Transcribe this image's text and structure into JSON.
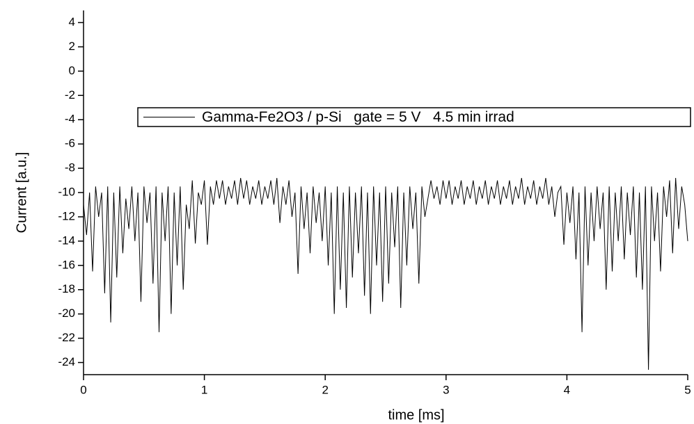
{
  "chart_data": {
    "type": "line",
    "xlabel": "time [ms]",
    "ylabel": "Current [a.u.]",
    "xlim": [
      0,
      5
    ],
    "xticks": [
      0,
      1,
      2,
      3,
      4,
      5
    ],
    "ylim": [
      -25,
      5
    ],
    "yticks": [
      -24,
      -22,
      -20,
      -18,
      -16,
      -14,
      -12,
      -10,
      -8,
      -6,
      -4,
      -2,
      0,
      2,
      4
    ],
    "legend": "upper right",
    "x": [
      0,
      0.025,
      0.05,
      0.075,
      0.1,
      0.125,
      0.15,
      0.175,
      0.2,
      0.225,
      0.25,
      0.275,
      0.3,
      0.325,
      0.35,
      0.375,
      0.4,
      0.425,
      0.45,
      0.475,
      0.5,
      0.525,
      0.55,
      0.575,
      0.6,
      0.625,
      0.65,
      0.675,
      0.7,
      0.725,
      0.75,
      0.775,
      0.8,
      0.825,
      0.85,
      0.875,
      0.9,
      0.925,
      0.95,
      0.975,
      1,
      1.025,
      1.05,
      1.075,
      1.1,
      1.125,
      1.15,
      1.175,
      1.2,
      1.225,
      1.25,
      1.275,
      1.3,
      1.325,
      1.35,
      1.375,
      1.4,
      1.425,
      1.45,
      1.475,
      1.5,
      1.525,
      1.55,
      1.575,
      1.6,
      1.625,
      1.65,
      1.675,
      1.7,
      1.725,
      1.75,
      1.775,
      1.8,
      1.825,
      1.85,
      1.875,
      1.9,
      1.925,
      1.95,
      1.975,
      2,
      2.025,
      2.05,
      2.075,
      2.1,
      2.125,
      2.15,
      2.175,
      2.2,
      2.225,
      2.25,
      2.275,
      2.3,
      2.325,
      2.35,
      2.375,
      2.4,
      2.425,
      2.45,
      2.475,
      2.5,
      2.525,
      2.55,
      2.575,
      2.6,
      2.625,
      2.65,
      2.675,
      2.7,
      2.725,
      2.75,
      2.775,
      2.8,
      2.825,
      2.85,
      2.875,
      2.9,
      2.925,
      2.95,
      2.975,
      3,
      3.025,
      3.05,
      3.075,
      3.1,
      3.125,
      3.15,
      3.175,
      3.2,
      3.225,
      3.25,
      3.275,
      3.3,
      3.325,
      3.35,
      3.375,
      3.4,
      3.425,
      3.45,
      3.475,
      3.5,
      3.525,
      3.55,
      3.575,
      3.6,
      3.625,
      3.65,
      3.675,
      3.7,
      3.725,
      3.75,
      3.775,
      3.8,
      3.825,
      3.85,
      3.875,
      3.9,
      3.925,
      3.95,
      3.975,
      4,
      4.025,
      4.05,
      4.075,
      4.1,
      4.125,
      4.15,
      4.175,
      4.2,
      4.225,
      4.25,
      4.275,
      4.3,
      4.325,
      4.35,
      4.375,
      4.4,
      4.425,
      4.45,
      4.475,
      4.5,
      4.525,
      4.55,
      4.575,
      4.6,
      4.625,
      4.65,
      4.675,
      4.7,
      4.725,
      4.75,
      4.775,
      4.8,
      4.825,
      4.85,
      4.875,
      4.9,
      4.925,
      4.95,
      4.975,
      5
    ],
    "series": [
      {
        "name": "Gamma-Fe2O3 / p-Si   gate = 5 V   4.5 min irrad",
        "color": "#000000",
        "values": [
          -11,
          -13.5,
          -10,
          -16.5,
          -9.5,
          -12,
          -10,
          -18.3,
          -9.5,
          -20.7,
          -10,
          -17,
          -9.5,
          -15,
          -10.5,
          -13,
          -9.5,
          -14,
          -10,
          -19,
          -9.5,
          -12.5,
          -10,
          -17.5,
          -9.5,
          -21.5,
          -10,
          -14,
          -9.5,
          -20,
          -10,
          -16,
          -9.5,
          -18,
          -11,
          -13,
          -9,
          -14.2,
          -10,
          -11,
          -9,
          -14.3,
          -9.5,
          -11,
          -9,
          -10.5,
          -9,
          -11,
          -9.5,
          -10.5,
          -9,
          -11,
          -8.8,
          -10.5,
          -9,
          -11,
          -9.5,
          -10.5,
          -9,
          -11,
          -9.5,
          -10.5,
          -9,
          -11,
          -8.8,
          -12.5,
          -9.5,
          -11,
          -9,
          -12,
          -10,
          -16.7,
          -9.5,
          -13,
          -10,
          -15,
          -9.5,
          -12.5,
          -10,
          -14,
          -9.5,
          -16,
          -10,
          -20,
          -9.5,
          -18,
          -10,
          -19.5,
          -9.5,
          -17,
          -10,
          -15,
          -9.5,
          -18.5,
          -10,
          -20,
          -9.5,
          -16,
          -10,
          -19,
          -9.5,
          -17.5,
          -10,
          -14.5,
          -9.5,
          -19.5,
          -10,
          -16,
          -9.5,
          -13,
          -10,
          -17.5,
          -9.5,
          -12,
          -10.5,
          -9,
          -10.5,
          -9.5,
          -11,
          -9,
          -10.5,
          -9,
          -11,
          -9.5,
          -10.5,
          -9,
          -11,
          -9.5,
          -10.5,
          -9,
          -11,
          -9.5,
          -10.5,
          -9,
          -11,
          -9.5,
          -10.5,
          -9,
          -11,
          -9.5,
          -10.5,
          -9,
          -11,
          -9.5,
          -10.5,
          -8.8,
          -11,
          -9.5,
          -10.5,
          -9,
          -11,
          -9.5,
          -10.5,
          -8.8,
          -11,
          -9.5,
          -12,
          -10,
          -9.5,
          -14.3,
          -10,
          -12.5,
          -9.5,
          -15.5,
          -10,
          -21.5,
          -9.5,
          -16,
          -10,
          -14,
          -9.5,
          -13,
          -10,
          -18,
          -9.5,
          -16.5,
          -10,
          -14,
          -9.5,
          -15.5,
          -10,
          -13.5,
          -9.5,
          -17,
          -10,
          -18,
          -9.5,
          -24.6,
          -9.5,
          -14,
          -10,
          -16.5,
          -9.5,
          -12,
          -9,
          -15,
          -8.8,
          -13,
          -9.5,
          -11,
          -14
        ]
      }
    ]
  }
}
